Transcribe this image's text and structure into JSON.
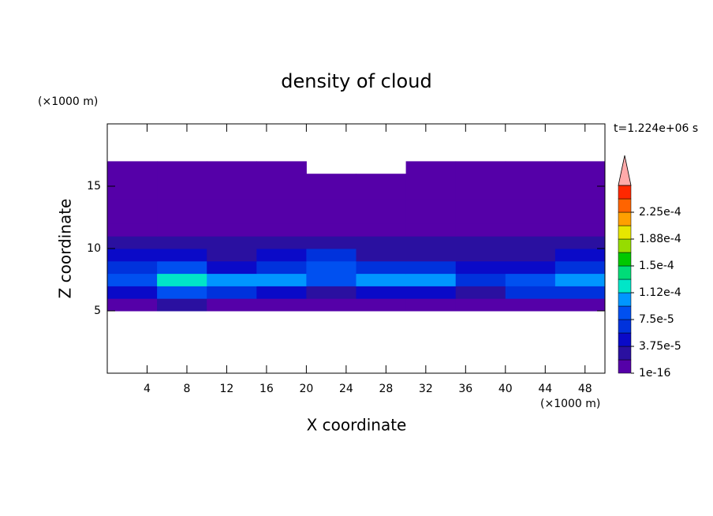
{
  "chart_data": {
    "type": "contour",
    "title": "density of cloud",
    "xlabel": "X coordinate",
    "ylabel": "Z coordinate",
    "x_unit": "(×1000 m)",
    "y_unit": "(×1000 m)",
    "annotation": "t=1.224e+06 s",
    "xlim": [
      0,
      50
    ],
    "ylim": [
      0,
      20
    ],
    "xticks": [
      4,
      8,
      12,
      16,
      20,
      24,
      28,
      32,
      36,
      40,
      44,
      48
    ],
    "yticks": [
      5,
      10,
      15
    ],
    "x": [
      2.5,
      7.5,
      12.5,
      17.5,
      22.5,
      27.5,
      32.5,
      37.5,
      42.5,
      47.5
    ],
    "y": [
      5.5,
      6.5,
      7.5,
      8.5,
      9.5,
      10.5,
      11.5,
      12.5,
      13.5,
      14.5,
      15.5,
      16.5
    ],
    "z": [
      [
        1e-05,
        2e-05,
        1.5e-05,
        1e-05,
        1e-05,
        1e-05,
        1e-05,
        1e-05,
        1e-05,
        1e-05
      ],
      [
        5e-05,
        9e-05,
        6e-05,
        4e-05,
        3e-05,
        5e-05,
        4e-05,
        3e-05,
        6e-05,
        7e-05
      ],
      [
        9e-05,
        0.00012,
        0.00011,
        0.00011,
        8e-05,
        0.00011,
        0.0001,
        6e-05,
        8e-05,
        0.00011
      ],
      [
        6e-05,
        8e-05,
        5e-05,
        6e-05,
        9e-05,
        7e-05,
        6e-05,
        4e-05,
        5e-05,
        6e-05
      ],
      [
        4e-05,
        4e-05,
        3e-05,
        4e-05,
        6e-05,
        3e-05,
        3e-05,
        3e-05,
        3e-05,
        4e-05
      ],
      [
        2e-05,
        2e-05,
        2e-05,
        2e-05,
        2.5e-05,
        2e-05,
        2e-05,
        2e-05,
        2e-05,
        2e-05
      ],
      [
        1e-05,
        1e-05,
        1e-05,
        1e-05,
        1e-05,
        1e-05,
        1e-05,
        1e-05,
        1e-05,
        1e-05
      ],
      [
        1e-05,
        1e-05,
        1e-05,
        1e-05,
        1e-05,
        1e-05,
        1e-05,
        1e-05,
        1e-05,
        1e-05
      ],
      [
        5e-06,
        5e-06,
        5e-06,
        5e-06,
        5e-06,
        5e-06,
        5e-06,
        5e-06,
        5e-06,
        5e-06
      ],
      [
        5e-06,
        5e-06,
        5e-06,
        5e-06,
        5e-06,
        5e-06,
        5e-06,
        5e-06,
        5e-06,
        5e-06
      ],
      [
        5e-06,
        5e-06,
        5e-06,
        5e-06,
        5e-06,
        5e-06,
        5e-06,
        5e-06,
        5e-06,
        5e-06
      ],
      [
        5e-06,
        5e-06,
        5e-06,
        5e-06,
        null,
        null,
        5e-06,
        5e-06,
        5e-06,
        5e-06
      ]
    ],
    "levels": [
      1e-16,
      1.875e-05,
      3.75e-05,
      5.625e-05,
      7.5e-05,
      9.375e-05,
      0.0001125,
      0.00013125,
      0.00015,
      0.00016875,
      0.0001875,
      0.00020625,
      0.000225,
      0.00024375
    ],
    "colors": [
      "#5500a8",
      "#2a10a0",
      "#0a0ac8",
      "#0032dc",
      "#0050f0",
      "#0096ff",
      "#00e6c8",
      "#00dc78",
      "#00c800",
      "#96dc00",
      "#e6e600",
      "#ffa000",
      "#ff6400",
      "#ff2800"
    ],
    "extend_color": "#ffaaaa",
    "colorbar_ticks": [
      {
        "value": 1e-16,
        "label": "1e-16"
      },
      {
        "value": 3.75e-05,
        "label": "3.75e-5"
      },
      {
        "value": 7.5e-05,
        "label": "7.5e-5"
      },
      {
        "value": 0.0001125,
        "label": "1.12e-4"
      },
      {
        "value": 0.00015,
        "label": "1.5e-4"
      },
      {
        "value": 0.0001875,
        "label": "1.88e-4"
      },
      {
        "value": 0.000225,
        "label": "2.25e-4"
      }
    ]
  }
}
